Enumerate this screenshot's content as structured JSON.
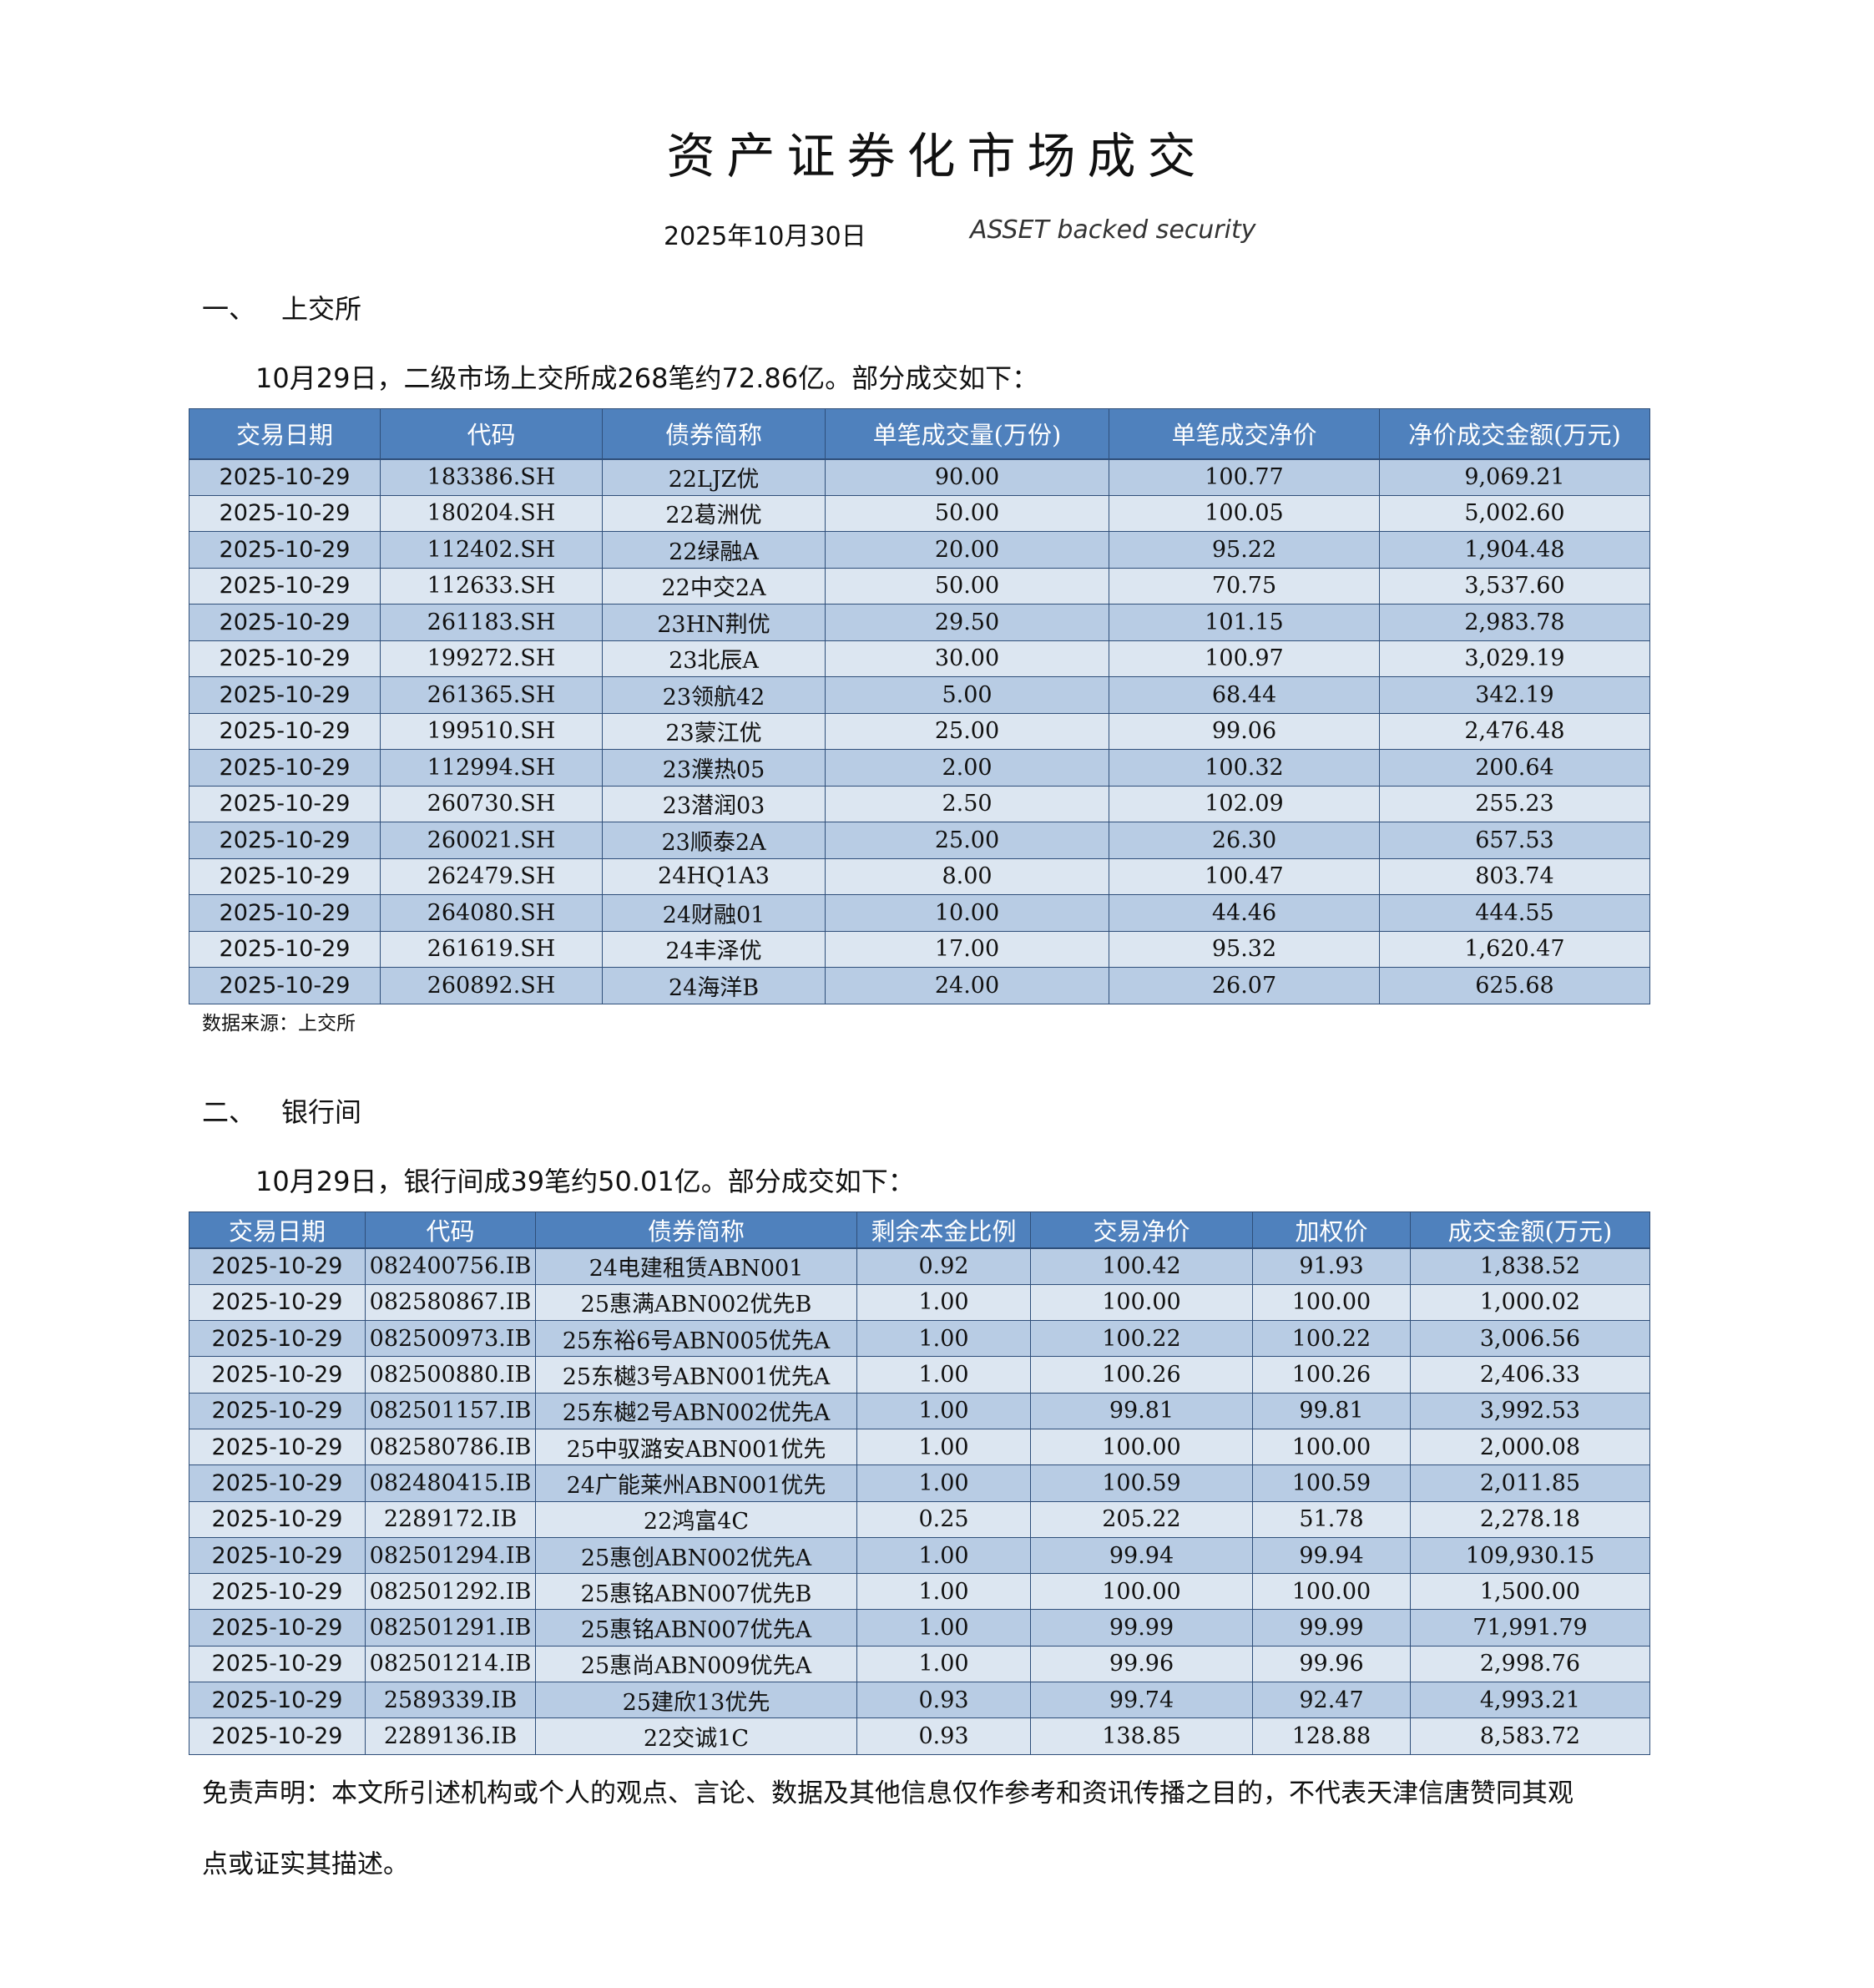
{
  "title": "资产证券化市场成交",
  "subtitle": {
    "date": "2025年10月30日",
    "english": "ASSET backed security"
  },
  "section1": {
    "heading_num": "一、",
    "heading": "上交所",
    "intro": "10月29日，二级市场上交所成268笔约72.86亿。部分成交如下：",
    "columns": [
      "交易日期",
      "代码",
      "债券简称",
      "单笔成交量(万份)",
      "单笔成交净价",
      "净价成交金额(万元)"
    ],
    "rows": [
      [
        "2025-10-29",
        "183386.SH",
        "22LJZ优",
        "90.00",
        "100.77",
        "9,069.21"
      ],
      [
        "2025-10-29",
        "180204.SH",
        "22葛洲优",
        "50.00",
        "100.05",
        "5,002.60"
      ],
      [
        "2025-10-29",
        "112402.SH",
        "22绿融A",
        "20.00",
        "95.22",
        "1,904.48"
      ],
      [
        "2025-10-29",
        "112633.SH",
        "22中交2A",
        "50.00",
        "70.75",
        "3,537.60"
      ],
      [
        "2025-10-29",
        "261183.SH",
        "23HN荆优",
        "29.50",
        "101.15",
        "2,983.78"
      ],
      [
        "2025-10-29",
        "199272.SH",
        "23北辰A",
        "30.00",
        "100.97",
        "3,029.19"
      ],
      [
        "2025-10-29",
        "261365.SH",
        "23领航42",
        "5.00",
        "68.44",
        "342.19"
      ],
      [
        "2025-10-29",
        "199510.SH",
        "23蒙江优",
        "25.00",
        "99.06",
        "2,476.48"
      ],
      [
        "2025-10-29",
        "112994.SH",
        "23濮热05",
        "2.00",
        "100.32",
        "200.64"
      ],
      [
        "2025-10-29",
        "260730.SH",
        "23潜润03",
        "2.50",
        "102.09",
        "255.23"
      ],
      [
        "2025-10-29",
        "260021.SH",
        "23顺泰2A",
        "25.00",
        "26.30",
        "657.53"
      ],
      [
        "2025-10-29",
        "262479.SH",
        "24HQ1A3",
        "8.00",
        "100.47",
        "803.74"
      ],
      [
        "2025-10-29",
        "264080.SH",
        "24财融01",
        "10.00",
        "44.46",
        "444.55"
      ],
      [
        "2025-10-29",
        "261619.SH",
        "24丰泽优",
        "17.00",
        "95.32",
        "1,620.47"
      ],
      [
        "2025-10-29",
        "260892.SH",
        "24海洋B",
        "24.00",
        "26.07",
        "625.68"
      ]
    ],
    "source": "数据来源：上交所"
  },
  "section2": {
    "heading_num": "二、",
    "heading": "银行间",
    "intro": "10月29日，银行间成39笔约50.01亿。部分成交如下：",
    "columns": [
      "交易日期",
      "代码",
      "债券简称",
      "剩余本金比例",
      "交易净价",
      "加权价",
      "成交金额(万元)"
    ],
    "rows": [
      [
        "2025-10-29",
        "082400756.IB",
        "24电建租赁ABN001",
        "0.92",
        "100.42",
        "91.93",
        "1,838.52"
      ],
      [
        "2025-10-29",
        "082580867.IB",
        "25惠满ABN002优先B",
        "1.00",
        "100.00",
        "100.00",
        "1,000.02"
      ],
      [
        "2025-10-29",
        "082500973.IB",
        "25东裕6号ABN005优先A",
        "1.00",
        "100.22",
        "100.22",
        "3,006.56"
      ],
      [
        "2025-10-29",
        "082500880.IB",
        "25东樾3号ABN001优先A",
        "1.00",
        "100.26",
        "100.26",
        "2,406.33"
      ],
      [
        "2025-10-29",
        "082501157.IB",
        "25东樾2号ABN002优先A",
        "1.00",
        "99.81",
        "99.81",
        "3,992.53"
      ],
      [
        "2025-10-29",
        "082580786.IB",
        "25中驭潞安ABN001优先",
        "1.00",
        "100.00",
        "100.00",
        "2,000.08"
      ],
      [
        "2025-10-29",
        "082480415.IB",
        "24广能莱州ABN001优先",
        "1.00",
        "100.59",
        "100.59",
        "2,011.85"
      ],
      [
        "2025-10-29",
        "2289172.IB",
        "22鸿富4C",
        "0.25",
        "205.22",
        "51.78",
        "2,278.18"
      ],
      [
        "2025-10-29",
        "082501294.IB",
        "25惠创ABN002优先A",
        "1.00",
        "99.94",
        "99.94",
        "109,930.15"
      ],
      [
        "2025-10-29",
        "082501292.IB",
        "25惠铭ABN007优先B",
        "1.00",
        "100.00",
        "100.00",
        "1,500.00"
      ],
      [
        "2025-10-29",
        "082501291.IB",
        "25惠铭ABN007优先A",
        "1.00",
        "99.99",
        "99.99",
        "71,991.79"
      ],
      [
        "2025-10-29",
        "082501214.IB",
        "25惠尚ABN009优先A",
        "1.00",
        "99.96",
        "99.96",
        "2,998.76"
      ],
      [
        "2025-10-29",
        "2589339.IB",
        "25建欣13优先",
        "0.93",
        "99.74",
        "92.47",
        "4,993.21"
      ],
      [
        "2025-10-29",
        "2289136.IB",
        "22交诚1C",
        "0.93",
        "138.85",
        "128.88",
        "8,583.72"
      ]
    ]
  },
  "disclaimer": {
    "line1": "免责声明：本文所引述机构或个人的观点、言论、数据及其他信息仅作参考和资讯传播之目的，不代表天津信唐赞同其观",
    "line2": "点或证实其描述。"
  },
  "colors": {
    "header": "#4F81BD",
    "row_odd": "#B8CCE4",
    "row_even": "#DCE6F1"
  }
}
